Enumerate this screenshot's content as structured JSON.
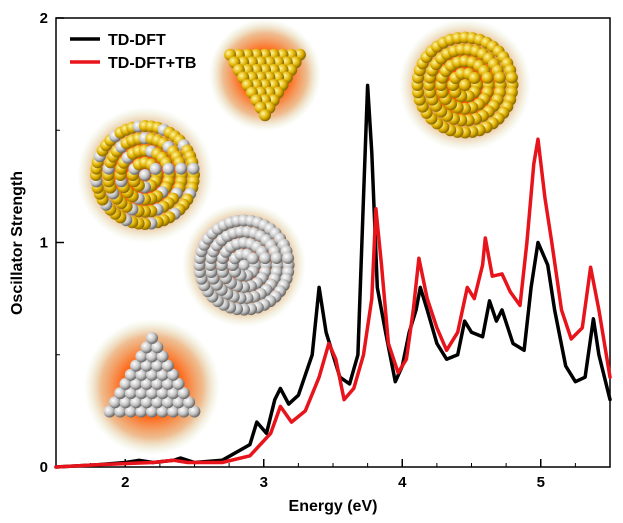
{
  "chart_data": {
    "type": "line",
    "xlabel": "Energy (eV)",
    "ylabel": "Oscillator Strength",
    "xlim": [
      1.5,
      5.5
    ],
    "ylim": [
      0,
      2
    ],
    "x_ticks": [
      "2",
      "3",
      "4",
      "5"
    ],
    "y_ticks": [
      "0",
      "1",
      "2"
    ],
    "legend_position": "top-left",
    "series": [
      {
        "name": "TD-DFT",
        "color": "#000000",
        "points": [
          [
            1.5,
            0.0
          ],
          [
            1.8,
            0.01
          ],
          [
            2.0,
            0.02
          ],
          [
            2.1,
            0.03
          ],
          [
            2.2,
            0.02
          ],
          [
            2.35,
            0.03
          ],
          [
            2.4,
            0.04
          ],
          [
            2.5,
            0.02
          ],
          [
            2.7,
            0.03
          ],
          [
            2.9,
            0.1
          ],
          [
            2.95,
            0.2
          ],
          [
            3.02,
            0.15
          ],
          [
            3.08,
            0.3
          ],
          [
            3.12,
            0.35
          ],
          [
            3.18,
            0.28
          ],
          [
            3.25,
            0.32
          ],
          [
            3.35,
            0.5
          ],
          [
            3.4,
            0.8
          ],
          [
            3.45,
            0.6
          ],
          [
            3.5,
            0.5
          ],
          [
            3.55,
            0.4
          ],
          [
            3.62,
            0.37
          ],
          [
            3.68,
            0.5
          ],
          [
            3.72,
            1.2
          ],
          [
            3.75,
            1.7
          ],
          [
            3.78,
            1.4
          ],
          [
            3.82,
            0.8
          ],
          [
            3.88,
            0.6
          ],
          [
            3.95,
            0.38
          ],
          [
            4.0,
            0.45
          ],
          [
            4.05,
            0.6
          ],
          [
            4.1,
            0.7
          ],
          [
            4.13,
            0.8
          ],
          [
            4.18,
            0.7
          ],
          [
            4.25,
            0.55
          ],
          [
            4.32,
            0.48
          ],
          [
            4.4,
            0.5
          ],
          [
            4.45,
            0.65
          ],
          [
            4.5,
            0.6
          ],
          [
            4.58,
            0.58
          ],
          [
            4.63,
            0.74
          ],
          [
            4.68,
            0.65
          ],
          [
            4.72,
            0.7
          ],
          [
            4.8,
            0.55
          ],
          [
            4.88,
            0.52
          ],
          [
            4.93,
            0.8
          ],
          [
            4.98,
            1.0
          ],
          [
            5.05,
            0.9
          ],
          [
            5.1,
            0.7
          ],
          [
            5.18,
            0.45
          ],
          [
            5.25,
            0.38
          ],
          [
            5.32,
            0.4
          ],
          [
            5.38,
            0.66
          ],
          [
            5.42,
            0.5
          ],
          [
            5.5,
            0.3
          ]
        ]
      },
      {
        "name": "TD-DFT+TB",
        "color": "#e8141c",
        "points": [
          [
            1.5,
            0.0
          ],
          [
            1.8,
            0.01
          ],
          [
            2.0,
            0.015
          ],
          [
            2.2,
            0.02
          ],
          [
            2.35,
            0.03
          ],
          [
            2.45,
            0.02
          ],
          [
            2.7,
            0.02
          ],
          [
            2.9,
            0.05
          ],
          [
            3.05,
            0.15
          ],
          [
            3.12,
            0.27
          ],
          [
            3.2,
            0.2
          ],
          [
            3.3,
            0.25
          ],
          [
            3.4,
            0.4
          ],
          [
            3.47,
            0.55
          ],
          [
            3.52,
            0.48
          ],
          [
            3.58,
            0.3
          ],
          [
            3.65,
            0.35
          ],
          [
            3.72,
            0.5
          ],
          [
            3.78,
            0.75
          ],
          [
            3.81,
            1.15
          ],
          [
            3.85,
            0.9
          ],
          [
            3.9,
            0.55
          ],
          [
            3.97,
            0.42
          ],
          [
            4.03,
            0.48
          ],
          [
            4.08,
            0.7
          ],
          [
            4.12,
            0.93
          ],
          [
            4.18,
            0.75
          ],
          [
            4.25,
            0.62
          ],
          [
            4.32,
            0.52
          ],
          [
            4.4,
            0.6
          ],
          [
            4.47,
            0.8
          ],
          [
            4.52,
            0.75
          ],
          [
            4.58,
            0.9
          ],
          [
            4.6,
            1.02
          ],
          [
            4.65,
            0.85
          ],
          [
            4.72,
            0.86
          ],
          [
            4.78,
            0.78
          ],
          [
            4.85,
            0.72
          ],
          [
            4.9,
            1.0
          ],
          [
            4.95,
            1.35
          ],
          [
            4.98,
            1.46
          ],
          [
            5.03,
            1.2
          ],
          [
            5.08,
            1.0
          ],
          [
            5.15,
            0.7
          ],
          [
            5.22,
            0.57
          ],
          [
            5.3,
            0.62
          ],
          [
            5.36,
            0.89
          ],
          [
            5.42,
            0.7
          ],
          [
            5.5,
            0.4
          ]
        ]
      }
    ]
  },
  "insets": [
    {
      "name": "tetrahedron-gold-cluster",
      "color": "#e8b820"
    },
    {
      "name": "icosahedral-mixed-cluster",
      "color": "#e8b820"
    },
    {
      "name": "decahedral-mixed-cluster",
      "color": "#c8c8c8"
    },
    {
      "name": "decahedral-gold-cluster",
      "color": "#e8b820"
    },
    {
      "name": "tetrahedron-silver-cluster",
      "color": "#c8c8c8"
    }
  ]
}
